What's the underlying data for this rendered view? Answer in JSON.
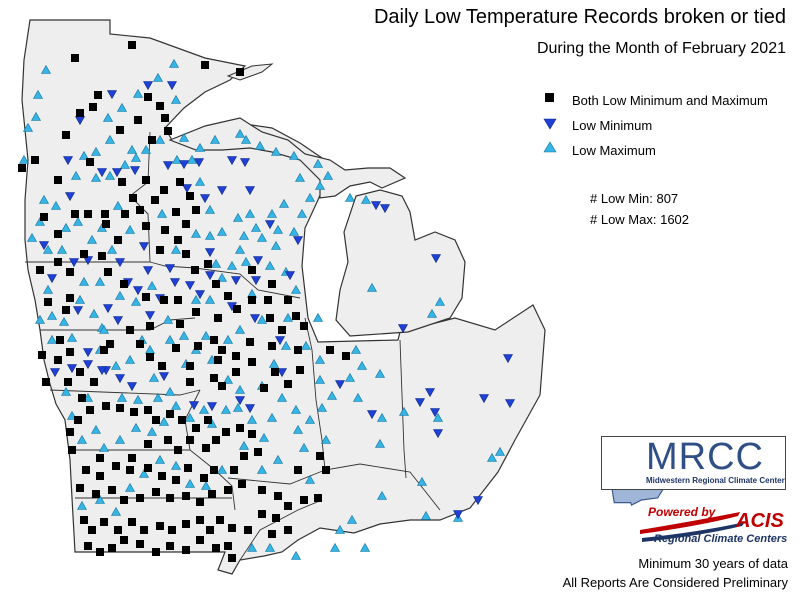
{
  "title": "Daily Low Temperature Records broken or tied",
  "subtitle": "During the Month of February 2021",
  "legend": [
    {
      "symbol": "square",
      "label": "Both Low Minimum and Maximum",
      "color": "#000000"
    },
    {
      "symbol": "triangle-down",
      "label": "Low Minimum",
      "color": "#1f3fd6"
    },
    {
      "symbol": "triangle-up",
      "label": "Low Maximum",
      "color": "#35b4e6"
    }
  ],
  "counts": {
    "low_min": "# Low Min: 807",
    "low_max": "# Low Max: 1602"
  },
  "logos": {
    "mrcc_name": "MRCC",
    "mrcc_full": "Midwestern Regional Climate Center",
    "acis_powered": "Powered by",
    "acis_name": "ACIS",
    "acis_sub": "Regional Climate Centers"
  },
  "footer": {
    "line1": "Minimum 30 years of data",
    "line2": "All Reports Are Considered Preliminary"
  },
  "colors": {
    "land": "#eeeeee",
    "water": "#ffffff",
    "both": "#000000",
    "low_min": "#1f3fd6",
    "low_max": "#35b4e6"
  }
}
